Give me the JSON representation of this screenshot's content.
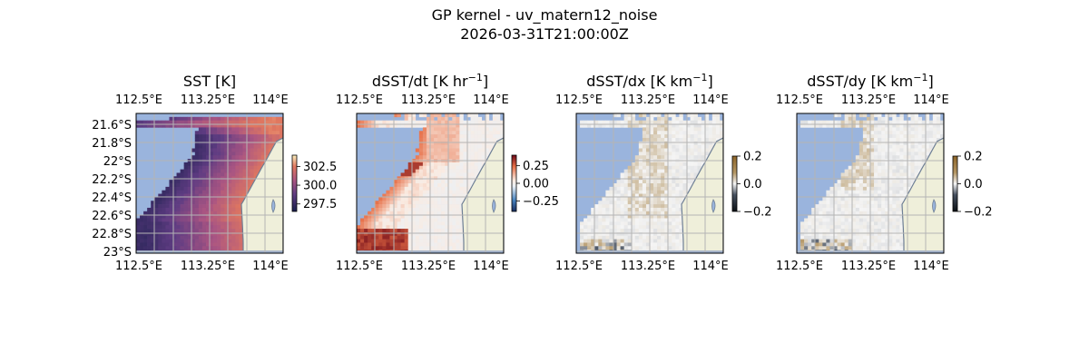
{
  "figure": {
    "title_line1": "GP kernel - uv_matern12_noise",
    "title_line2": "2026-03-31T21:00:00Z"
  },
  "colors": {
    "ocean": "#9ab4dd",
    "land": "#efefda",
    "coast": "#6e7f95",
    "grid": "#b4b4b4",
    "lake": "#9ab4dd"
  },
  "chart_data": [
    {
      "type": "heatmap",
      "title_main": "SST [K]",
      "title_sup": "",
      "title_tail": "",
      "x_ticks": [
        "112.5°E",
        "113.25°E",
        "114°E"
      ],
      "y_ticks": [
        "21.6°S",
        "21.8°S",
        "22°S",
        "22.2°S",
        "22.4°S",
        "22.6°S",
        "22.8°S",
        "23°S"
      ],
      "xlim": [
        112.5,
        114.0
      ],
      "ylim": [
        -23.0,
        -21.5
      ],
      "colormap": "plasma",
      "colorbar": {
        "ticks": [
          302.5,
          300.0,
          297.5
        ],
        "tick_labels": [
          "302.5",
          "300.0",
          "297.5"
        ],
        "range": [
          296.5,
          304.0
        ]
      }
    },
    {
      "type": "heatmap",
      "title_main": "dSST/dt [K hr",
      "title_sup": "−1",
      "title_tail": "]",
      "x_ticks": [
        "112.5°E",
        "113.25°E",
        "114°E"
      ],
      "xlim": [
        112.5,
        114.0
      ],
      "ylim": [
        -23.0,
        -21.5
      ],
      "colormap": "RdBu_r",
      "colorbar": {
        "ticks": [
          0.25,
          0.0,
          -0.25
        ],
        "tick_labels": [
          "0.25",
          "0.00",
          "−0.25"
        ],
        "range": [
          -0.4,
          0.4
        ]
      }
    },
    {
      "type": "heatmap",
      "title_main": "dSST/dx [K km",
      "title_sup": "−1",
      "title_tail": "]",
      "x_ticks": [
        "112.5°E",
        "113.25°E",
        "114°E"
      ],
      "xlim": [
        112.5,
        114.0
      ],
      "ylim": [
        -23.0,
        -21.5
      ],
      "colormap": "BrBG",
      "colorbar": {
        "ticks": [
          0.2,
          0.0,
          -0.2
        ],
        "tick_labels": [
          "0.2",
          "0.0",
          "−0.2"
        ],
        "range": [
          -0.2,
          0.2
        ]
      }
    },
    {
      "type": "heatmap",
      "title_main": "dSST/dy [K km",
      "title_sup": "−1",
      "title_tail": "]",
      "x_ticks": [
        "112.5°E",
        "113.25°E",
        "114°E"
      ],
      "xlim": [
        112.5,
        114.0
      ],
      "ylim": [
        -23.0,
        -21.5
      ],
      "colormap": "BrBG",
      "colorbar": {
        "ticks": [
          0.2,
          0.0,
          -0.2
        ],
        "tick_labels": [
          "0.2",
          "0.0",
          "−0.2"
        ],
        "range": [
          -0.2,
          0.2
        ]
      }
    }
  ]
}
